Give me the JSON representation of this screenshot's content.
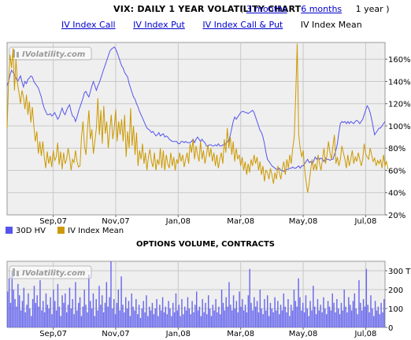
{
  "header": {
    "title": "VIX: DAILY 1 YEAR VOLATILITY CHART",
    "open_paren": "(",
    "close_paren": ")",
    "range_3m": "3 months",
    "range_6m": "6 months",
    "range_1y": "1 year",
    "link_call": "IV Index Call",
    "link_put": "IV Index Put",
    "link_callput": "IV Index Call & Put",
    "link_mean": "IV Index Mean"
  },
  "watermark": "IVolatility.com",
  "colors": {
    "hv": "#5555ee",
    "iv": "#cc9900",
    "volume": "#6666ee",
    "plot_bg": "#efefef",
    "grid": "#c8c8c8"
  },
  "legend": {
    "hv_label": "30D HV",
    "iv_label": "IV Index Mean"
  },
  "volume_title": "OPTIONS VOLUME, CONTRACTS",
  "chart_data": [
    {
      "type": "line",
      "x_ticks": [
        "Sep,07",
        "Nov,07",
        "Jan,08",
        "Mar,08",
        "May,08",
        "Jul,08"
      ],
      "x_tick_index": [
        31,
        73,
        115,
        157,
        199,
        241
      ],
      "ylim": [
        20,
        175
      ],
      "y_ticks": [
        20,
        40,
        60,
        80,
        100,
        120,
        140,
        160
      ],
      "y_tick_labels": [
        "20%",
        "40%",
        "60%",
        "80%",
        "100%",
        "120%",
        "140%",
        "160%"
      ],
      "grid": true,
      "legend": "bottom-left",
      "series": [
        {
          "name": "30D HV",
          "values": [
            136,
            140,
            146,
            150,
            148,
            146,
            143,
            140,
            142,
            145,
            140,
            135,
            140,
            138,
            142,
            143,
            145,
            144,
            140,
            138,
            136,
            134,
            130,
            126,
            120,
            116,
            113,
            110,
            110,
            111,
            109,
            110,
            112,
            109,
            106,
            108,
            112,
            116,
            112,
            110,
            114,
            117,
            119,
            113,
            109,
            108,
            104,
            108,
            113,
            117,
            121,
            125,
            130,
            131,
            128,
            126,
            131,
            136,
            140,
            136,
            132,
            136,
            139,
            143,
            147,
            151,
            155,
            159,
            163,
            167,
            169,
            170,
            171,
            169,
            166,
            162,
            158,
            154,
            152,
            148,
            146,
            144,
            138,
            134,
            130,
            126,
            124,
            120,
            117,
            113,
            110,
            107,
            104,
            101,
            98,
            97,
            96,
            94,
            95,
            93,
            91,
            92,
            94,
            91,
            92,
            93,
            90,
            91,
            90,
            88,
            87,
            86,
            86,
            86,
            86,
            84,
            84,
            86,
            86,
            85,
            86,
            85,
            85,
            85,
            86,
            88,
            85,
            88,
            90,
            88,
            86,
            88,
            86,
            85,
            82,
            82,
            83,
            83,
            82,
            82,
            83,
            82,
            84,
            82,
            82,
            83,
            83,
            84,
            86,
            86,
            92,
            98,
            104,
            108,
            106,
            108,
            110,
            112,
            113,
            113,
            112,
            112,
            111,
            112,
            113,
            114,
            112,
            108,
            104,
            100,
            96,
            94,
            90,
            84,
            76,
            70,
            68,
            66,
            64,
            63,
            62,
            61,
            61,
            62,
            60,
            60,
            59,
            60,
            61,
            61,
            62,
            62,
            63,
            62,
            62,
            63,
            64,
            62,
            64,
            64,
            66,
            68,
            70,
            67,
            68,
            66,
            68,
            72,
            70,
            72,
            70,
            71,
            70,
            68,
            71,
            70,
            70,
            69,
            70,
            70,
            74,
            78,
            84,
            94,
            102,
            104,
            103,
            104,
            102,
            104,
            102,
            104,
            103,
            102,
            104,
            105,
            104,
            102,
            104,
            106,
            110,
            114,
            118,
            116,
            112,
            106,
            99,
            92,
            94,
            96,
            98,
            98,
            100,
            102,
            104
          ]
        },
        {
          "name": "IV Index Mean",
          "values": [
            98,
            140,
            164,
            152,
            170,
            132,
            160,
            138,
            130,
            120,
            132,
            126,
            115,
            128,
            110,
            122,
            103,
            117,
            100,
            86,
            95,
            75,
            86,
            73,
            86,
            72,
            62,
            77,
            66,
            73,
            63,
            78,
            69,
            72,
            85,
            65,
            77,
            61,
            76,
            66,
            70,
            80,
            72,
            60,
            70,
            67,
            78,
            68,
            63,
            64,
            90,
            104,
            82,
            74,
            96,
            114,
            88,
            97,
            75,
            86,
            98,
            125,
            92,
            114,
            84,
            118,
            93,
            104,
            80,
            96,
            110,
            88,
            98,
            115,
            86,
            104,
            92,
            106,
            86,
            110,
            72,
            95,
            80,
            116,
            82,
            100,
            74,
            94,
            64,
            78,
            70,
            84,
            66,
            76,
            60,
            72,
            79,
            68,
            63,
            76,
            60,
            70,
            65,
            80,
            62,
            78,
            60,
            74,
            66,
            62,
            76,
            64,
            72,
            60,
            70,
            66,
            76,
            68,
            74,
            63,
            70,
            76,
            66,
            84,
            76,
            88,
            70,
            82,
            74,
            68,
            86,
            70,
            78,
            66,
            74,
            83,
            72,
            80,
            68,
            76,
            64,
            74,
            62,
            70,
            76,
            66,
            88,
            76,
            98,
            80,
            90,
            74,
            86,
            68,
            80,
            70,
            74,
            64,
            72,
            60,
            68,
            56,
            66,
            58,
            70,
            64,
            74,
            66,
            72,
            60,
            68,
            56,
            64,
            50,
            60,
            58,
            52,
            62,
            56,
            48,
            58,
            52,
            64,
            58,
            52,
            62,
            68,
            56,
            70,
            62,
            74,
            66,
            80,
            90,
            128,
            174,
            92,
            80,
            72,
            78,
            60,
            50,
            40,
            48,
            60,
            70,
            60,
            66,
            60,
            74,
            66,
            60,
            70,
            80,
            66,
            74,
            86,
            76,
            70,
            82,
            92,
            66,
            72,
            64,
            70,
            82,
            76,
            70,
            62,
            74,
            64,
            70,
            78,
            66,
            72,
            68,
            76,
            70,
            64,
            70,
            84,
            75,
            72,
            70,
            80,
            74,
            68,
            71,
            64,
            69,
            66,
            70,
            62,
            74,
            64,
            68,
            61
          ]
        }
      ]
    },
    {
      "type": "bar",
      "title": "OPTIONS VOLUME, CONTRACTS",
      "x_ticks": [
        "Sep,07",
        "Nov,07",
        "Jan,08",
        "Mar,08",
        "May,08",
        "Jul,08"
      ],
      "ylim": [
        0,
        350
      ],
      "y_ticks": [
        0,
        100,
        200,
        300
      ],
      "y_tick_labels": [
        "0",
        "100",
        "200",
        "300 T"
      ],
      "grid": true,
      "series": [
        {
          "name": "Options volume",
          "values": [
            190,
            260,
            130,
            300,
            200,
            150,
            110,
            230,
            170,
            90,
            140,
            210,
            80,
            120,
            180,
            100,
            60,
            150,
            220,
            130,
            170,
            110,
            250,
            90,
            140,
            80,
            180,
            120,
            100,
            160,
            70,
            200,
            140,
            90,
            230,
            110,
            60,
            170,
            130,
            180,
            80,
            120,
            210,
            100,
            150,
            70,
            240,
            90,
            130,
            160,
            60,
            110,
            200,
            120,
            80,
            280,
            140,
            100,
            180,
            60,
            150,
            90,
            220,
            120,
            170,
            80,
            130,
            240,
            110,
            160,
            350,
            100,
            150,
            70,
            130,
            200,
            90,
            270,
            120,
            80,
            160,
            100,
            140,
            60,
            180,
            110,
            90,
            150,
            70,
            120,
            50,
            100,
            140,
            80,
            170,
            60,
            110,
            90,
            130,
            70,
            100,
            150,
            60,
            120,
            90,
            160,
            80,
            110,
            70,
            140,
            100,
            60,
            130,
            80,
            180,
            90,
            120,
            60,
            150,
            70,
            110,
            90,
            160,
            100,
            70,
            140,
            80,
            120,
            190,
            90,
            110,
            60,
            150,
            80,
            130,
            70,
            170,
            100,
            60,
            120,
            90,
            150,
            80,
            110,
            70,
            200,
            130,
            90,
            160,
            110,
            240,
            120,
            90,
            170,
            100,
            140,
            80,
            190,
            110,
            150,
            90,
            120,
            80,
            170,
            310,
            130,
            90,
            160,
            110,
            140,
            80,
            200,
            100,
            70,
            150,
            90,
            170,
            60,
            130,
            100,
            80,
            160,
            90,
            140,
            70,
            120,
            90,
            180,
            110,
            80,
            150,
            60,
            120,
            90,
            200,
            140,
            110,
            260,
            160,
            90,
            130,
            80,
            170,
            100,
            60,
            140,
            90,
            220,
            110,
            70,
            150,
            90,
            120,
            80,
            160,
            100,
            70,
            140,
            110,
            90,
            180,
            130,
            80,
            150,
            100,
            70,
            130,
            90,
            200,
            110,
            80,
            160,
            120,
            90,
            140,
            180,
            100,
            70,
            250,
            130,
            90,
            150,
            110,
            310,
            120,
            80,
            170,
            100,
            60,
            140,
            90,
            110,
            70,
            130,
            80,
            150
          ]
        }
      ]
    }
  ]
}
